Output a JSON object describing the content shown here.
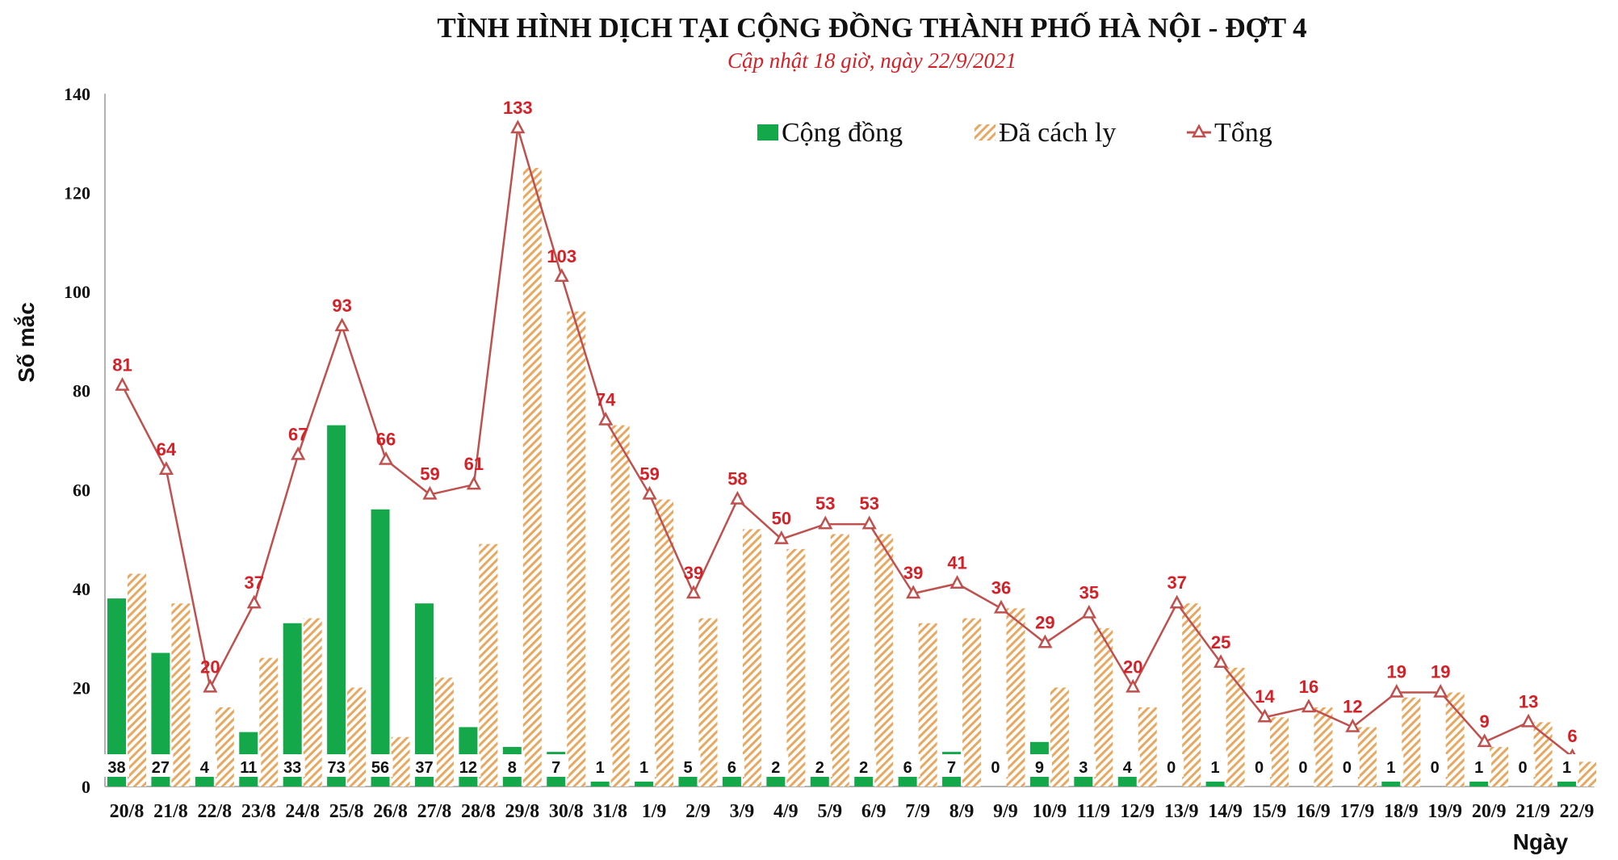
{
  "chart_data": {
    "type": "bar",
    "title": "TÌNH HÌNH DỊCH TẠI CỘNG ĐỒNG THÀNH PHỐ HÀ NỘI - ĐỢT 4",
    "subtitle": "Cập nhật 18 giờ, ngày 22/9/2021",
    "xlabel": "Ngày",
    "ylabel": "Số mắc",
    "ylim": [
      0,
      140
    ],
    "yticks": [
      0,
      20,
      40,
      60,
      80,
      100,
      120,
      140
    ],
    "grid": false,
    "legend_placement": "top-right",
    "categories": [
      "20/8",
      "21/8",
      "22/8",
      "23/8",
      "24/8",
      "25/8",
      "26/8",
      "27/8",
      "28/8",
      "29/8",
      "30/8",
      "31/8",
      "1/9",
      "2/9",
      "3/9",
      "4/9",
      "5/9",
      "6/9",
      "7/9",
      "8/9",
      "9/9",
      "10/9",
      "11/9",
      "12/9",
      "13/9",
      "14/9",
      "15/9",
      "16/9",
      "17/9",
      "18/9",
      "19/9",
      "20/9",
      "21/9",
      "22/9"
    ],
    "series": [
      {
        "name": "Cộng đồng",
        "type": "bar",
        "color": "#14a84a",
        "values": [
          38,
          27,
          4,
          11,
          33,
          73,
          56,
          37,
          12,
          8,
          7,
          1,
          1,
          5,
          6,
          2,
          2,
          2,
          6,
          7,
          0,
          9,
          3,
          4,
          0,
          1,
          0,
          0,
          0,
          1,
          0,
          1,
          0,
          1
        ]
      },
      {
        "name": "Đã cách ly",
        "type": "bar",
        "color": "#e8a860",
        "pattern": "hatched",
        "values": [
          43,
          37,
          16,
          26,
          34,
          20,
          10,
          22,
          49,
          125,
          96,
          73,
          58,
          34,
          52,
          48,
          51,
          51,
          33,
          34,
          36,
          20,
          32,
          16,
          37,
          24,
          14,
          16,
          12,
          18,
          19,
          8,
          13,
          5
        ]
      },
      {
        "name": "Tổng",
        "type": "line",
        "color": "#c0504d",
        "marker": "triangle",
        "label_color": "#d42027",
        "values": [
          81,
          64,
          20,
          37,
          67,
          93,
          66,
          59,
          61,
          133,
          103,
          74,
          59,
          39,
          58,
          50,
          53,
          53,
          39,
          41,
          36,
          29,
          35,
          20,
          37,
          25,
          14,
          16,
          12,
          19,
          19,
          9,
          13,
          6
        ]
      }
    ]
  }
}
